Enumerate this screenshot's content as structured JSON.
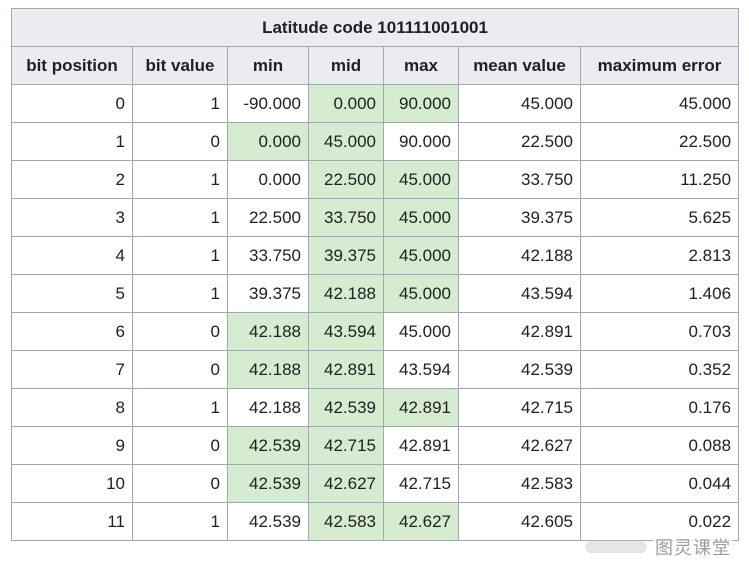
{
  "table": {
    "title": "Latitude code 101111001001",
    "headers": [
      "bit position",
      "bit value",
      "min",
      "mid",
      "max",
      "mean value",
      "maximum error"
    ],
    "rows": [
      [
        "0",
        "1",
        "-90.000",
        "0.000",
        "90.000",
        "45.000",
        "45.000"
      ],
      [
        "1",
        "0",
        "0.000",
        "45.000",
        "90.000",
        "22.500",
        "22.500"
      ],
      [
        "2",
        "1",
        "0.000",
        "22.500",
        "45.000",
        "33.750",
        "11.250"
      ],
      [
        "3",
        "1",
        "22.500",
        "33.750",
        "45.000",
        "39.375",
        "5.625"
      ],
      [
        "4",
        "1",
        "33.750",
        "39.375",
        "45.000",
        "42.188",
        "2.813"
      ],
      [
        "5",
        "1",
        "39.375",
        "42.188",
        "45.000",
        "43.594",
        "1.406"
      ],
      [
        "6",
        "0",
        "42.188",
        "43.594",
        "45.000",
        "42.891",
        "0.703"
      ],
      [
        "7",
        "0",
        "42.188",
        "42.891",
        "43.594",
        "42.539",
        "0.352"
      ],
      [
        "8",
        "1",
        "42.188",
        "42.539",
        "42.891",
        "42.715",
        "0.176"
      ],
      [
        "9",
        "0",
        "42.539",
        "42.715",
        "42.891",
        "42.627",
        "0.088"
      ],
      [
        "10",
        "0",
        "42.539",
        "42.627",
        "42.715",
        "42.583",
        "0.044"
      ],
      [
        "11",
        "1",
        "42.539",
        "42.583",
        "42.627",
        "42.605",
        "0.022"
      ]
    ],
    "highlight_color": "#d5ecd0"
  },
  "watermark": {
    "text": "图灵课堂"
  }
}
